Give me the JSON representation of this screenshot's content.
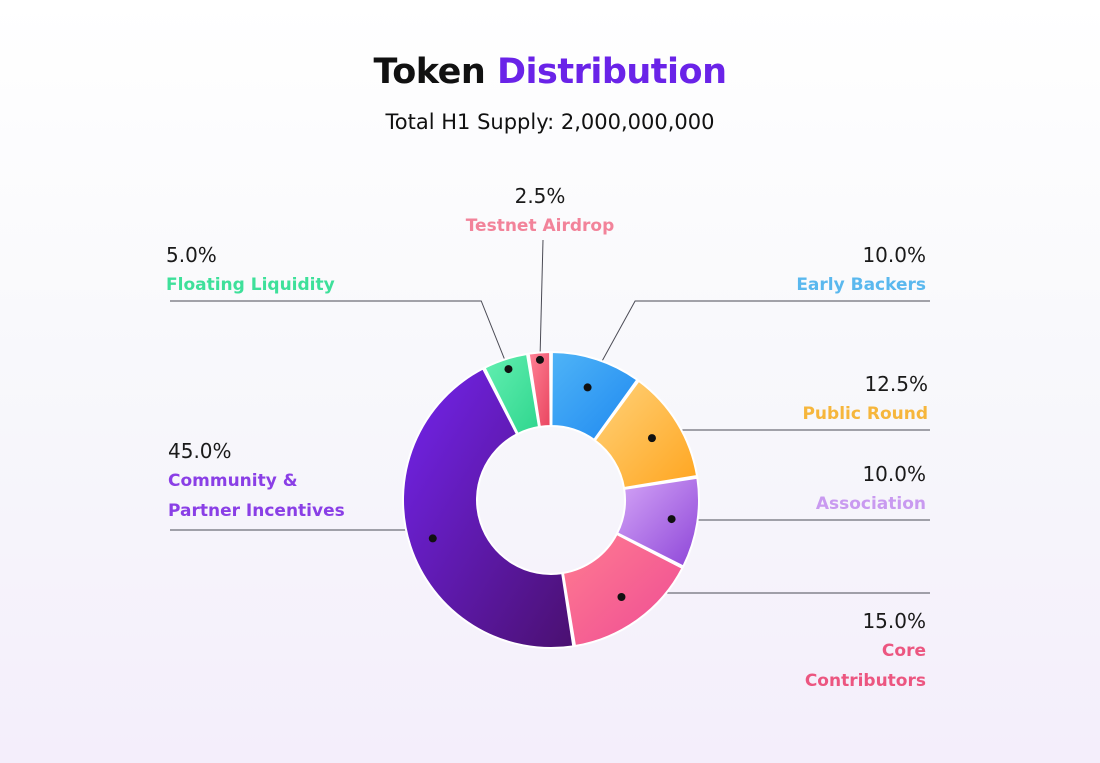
{
  "header": {
    "title_part1": "Token",
    "title_part2": "Distribution",
    "subtitle": "Total H1 Supply: 2,000,000,000"
  },
  "chart_data": {
    "type": "pie",
    "title": "Token Distribution",
    "subtitle": "Total H1 Supply: 2,000,000,000",
    "donut": true,
    "categories": [
      "Early Backers",
      "Public Round",
      "Association",
      "Core Contributors",
      "Community & Partner Incentives",
      "Floating Liquidity",
      "Testnet Airdrop"
    ],
    "values": [
      10.0,
      12.5,
      10.0,
      15.0,
      45.0,
      5.0,
      2.5
    ],
    "slices": [
      {
        "label_lines": [
          "Early Backers"
        ],
        "value": 10.0,
        "value_label": "10.0%",
        "color": "#1e88f0",
        "color_light": "#4fb4f7",
        "label_color": "#5ab8ee"
      },
      {
        "label_lines": [
          "Public Round"
        ],
        "value": 12.5,
        "value_label": "12.5%",
        "color": "#ffa51f",
        "color_light": "#ffd27a",
        "label_color": "#f6b63c"
      },
      {
        "label_lines": [
          "Association"
        ],
        "value": 10.0,
        "value_label": "10.0%",
        "color": "#8d45d8",
        "color_light": "#d5a6f7",
        "label_color": "#c99af0"
      },
      {
        "label_lines": [
          "Core",
          "Contributors"
        ],
        "value": 15.0,
        "value_label": "15.0%",
        "color": "#ee4b95",
        "color_light": "#ff7c90",
        "label_color": "#ec5680"
      },
      {
        "label_lines": [
          "Community &",
          "Partner Incentives"
        ],
        "value": 45.0,
        "value_label": "45.0%",
        "color": "#4a1070",
        "color_light": "#7424ee",
        "label_color": "#8a3fe6"
      },
      {
        "label_lines": [
          "Floating Liquidity"
        ],
        "value": 5.0,
        "value_label": "5.0%",
        "color": "#2fd68e",
        "color_light": "#63efb1",
        "label_color": "#3ee09a"
      },
      {
        "label_lines": [
          "Testnet Airdrop"
        ],
        "value": 2.5,
        "value_label": "2.5%",
        "color": "#e9455f",
        "color_light": "#ff8296",
        "label_color": "#f2839a"
      }
    ]
  }
}
